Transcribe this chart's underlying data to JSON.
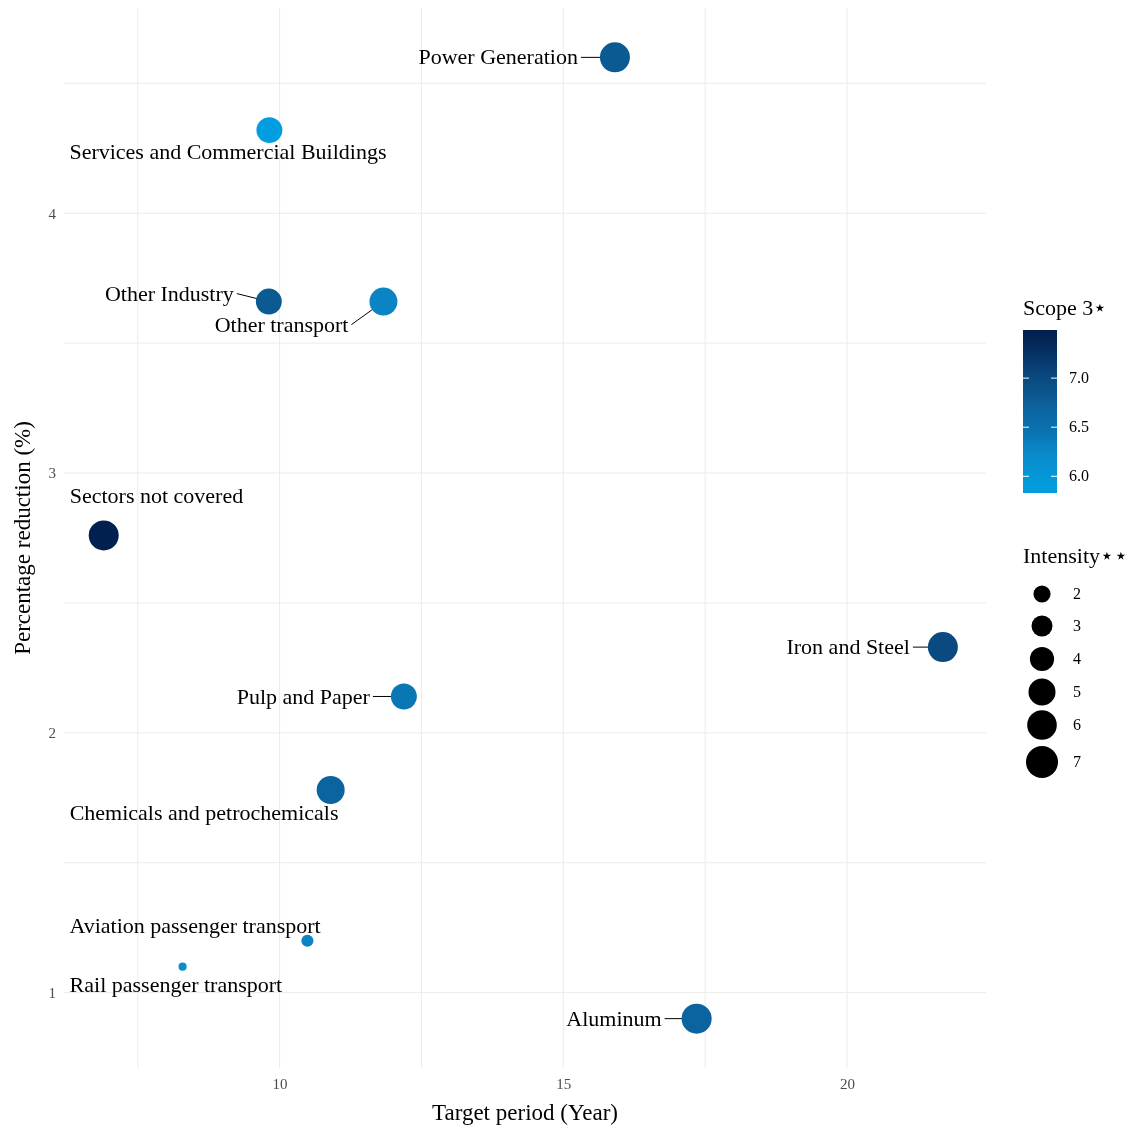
{
  "chart_data": {
    "type": "bubble",
    "xlabel": "Target period (Year)",
    "ylabel": "Percentage reduction (%)",
    "clabel": "Scope 3⋆",
    "legend_title": "Intensity⋆⋆",
    "xlim": [
      6.2,
      22.45
    ],
    "xticks": [
      {
        "value": 7.5,
        "label": null
      },
      10,
      {
        "value": 12.5,
        "label": null
      },
      15,
      {
        "value": 17.5,
        "label": null
      },
      20
    ],
    "ylim": [
      0.71,
      4.79
    ],
    "yticks": [
      1,
      {
        "value": 1.5,
        "label": null
      },
      2,
      {
        "value": 2.5,
        "label": null
      },
      3,
      {
        "value": 3.5,
        "label": null
      },
      4,
      {
        "value": 4.5,
        "label": null
      }
    ],
    "grid": true,
    "clim": [
      5.83,
      7.49
    ],
    "cticks": [
      {
        "value": 6,
        "label": "6.0"
      },
      6.5,
      {
        "value": 7,
        "label": "7.0"
      }
    ],
    "size_legend": [
      2,
      3,
      4,
      5,
      6,
      7
    ],
    "series": [
      {
        "x": [
          15.91,
          9.82,
          9.81,
          11.83,
          6.9,
          21.69,
          12.19,
          10.9,
          10.49,
          8.29,
          17.35
        ],
        "values": [
          4.6,
          4.32,
          3.66,
          3.66,
          2.76,
          2.33,
          2.14,
          1.78,
          1.2,
          1.1,
          0.9
        ],
        "sizes": [
          6.15,
          4.6,
          4.6,
          5.35,
          6.15,
          6.15,
          4.6,
          5.35,
          1,
          0.45,
          6.15
        ],
        "cvalues": [
          6.8,
          5.85,
          6.8,
          6.3,
          7.45,
          7.0,
          6.4,
          6.7,
          6.3,
          6.2,
          6.7
        ],
        "colors": [
          "#0b5a92",
          "#009ee0",
          "#0b5a92",
          "#0a84c4",
          "#02204f",
          "#0a4a80",
          "#0a77b5",
          "#0b64a0",
          "#0a84c4",
          "#098dcc",
          "#0b64a0"
        ]
      }
    ],
    "annotations": [
      {
        "text": "Power Generation",
        "x": 15.91,
        "y": 4.6
      },
      {
        "text": "Services and Commercial Buildings",
        "x": 9.82,
        "y": 4.32
      },
      {
        "text": "Other Industry",
        "x": 9.81,
        "y": 3.66
      },
      {
        "text": "Other transport",
        "x": 11.83,
        "y": 3.66
      },
      {
        "text": "Sectors not covered",
        "x": 6.9,
        "y": 2.76
      },
      {
        "text": "Iron and Steel",
        "x": 21.69,
        "y": 2.33
      },
      {
        "text": "Pulp and Paper",
        "x": 12.19,
        "y": 2.14
      },
      {
        "text": "Chemicals and petrochemicals",
        "x": 10.9,
        "y": 1.78
      },
      {
        "text": "Aviation passenger transport",
        "x": 10.49,
        "y": 1.2
      },
      {
        "text": "Rail passenger transport",
        "x": 8.29,
        "y": 1.1
      },
      {
        "text": "Aluminum",
        "x": 17.35,
        "y": 0.9
      }
    ]
  }
}
